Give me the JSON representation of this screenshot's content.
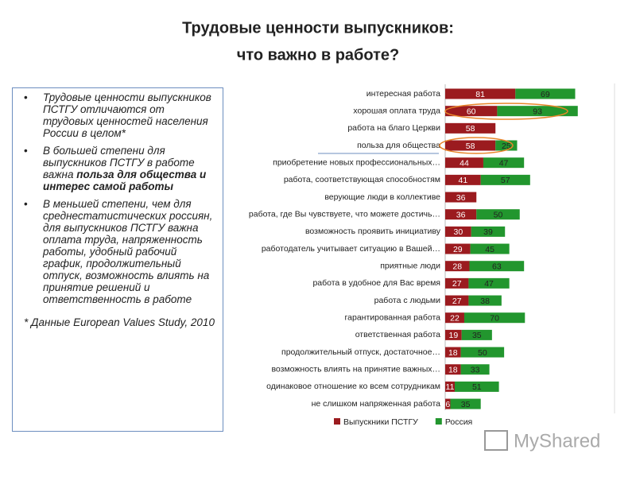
{
  "header": {
    "title": [
      "Трудовые ценности выпускников:",
      "что важно в работе?"
    ]
  },
  "notes": {
    "bullets": [
      {
        "text": "Трудовые ценности выпускников ПСТГУ отличаются от трудовых ценностей населения России в целом*"
      },
      {
        "text": "В большей степени для выпускников ПСТГУ в работе важна ",
        "emphasis": "польза для общества и интерес самой работы"
      },
      {
        "text": "В меньшей степени, чем для среднестатистических россиян, для выпускников ПСТГУ важна оплата труда, напряженность работы, удобный рабочий график, продолжительный отпуск, возможность влиять на принятие решений и ответственность в работе"
      }
    ],
    "footnote": "* Данные European Values Study, 2010"
  },
  "chart_data": {
    "type": "stacked-bar-horizontal",
    "categories": [
      "интересная работа",
      "хорошая оплата труда",
      "работа на благо Церкви",
      "польза для общества",
      "приобретение новых профессиональных…",
      "работа, соответствующая способностям",
      "верующие люди в коллективе",
      "работа, где Вы чувствуете, что можете достичь…",
      "возможность проявить инициативу",
      "работодатель учитывает ситуацию в Вашей…",
      "приятные люди",
      "работа в удобное для Вас время",
      "работа с людьми",
      "гарантированная работа",
      "ответственная работа",
      "продолжительный отпуск, достаточное…",
      "возможность влиять на принятие важных…",
      "одинаковое отношение ко всем сотрудникам",
      "не слишком напряженная работа"
    ],
    "series": [
      {
        "name": "Выпускники ПСТГУ",
        "color": "#9b1b1f",
        "values": [
          81,
          60,
          58,
          58,
          44,
          41,
          36,
          36,
          30,
          29,
          28,
          27,
          27,
          22,
          19,
          18,
          18,
          11,
          6
        ]
      },
      {
        "name": "Россия",
        "color": "#22962e",
        "values": [
          69,
          93,
          null,
          25,
          47,
          57,
          null,
          50,
          39,
          45,
          63,
          47,
          38,
          70,
          35,
          50,
          33,
          51,
          35
        ]
      }
    ],
    "legend": "bottom"
  },
  "watermark": "MyShared"
}
